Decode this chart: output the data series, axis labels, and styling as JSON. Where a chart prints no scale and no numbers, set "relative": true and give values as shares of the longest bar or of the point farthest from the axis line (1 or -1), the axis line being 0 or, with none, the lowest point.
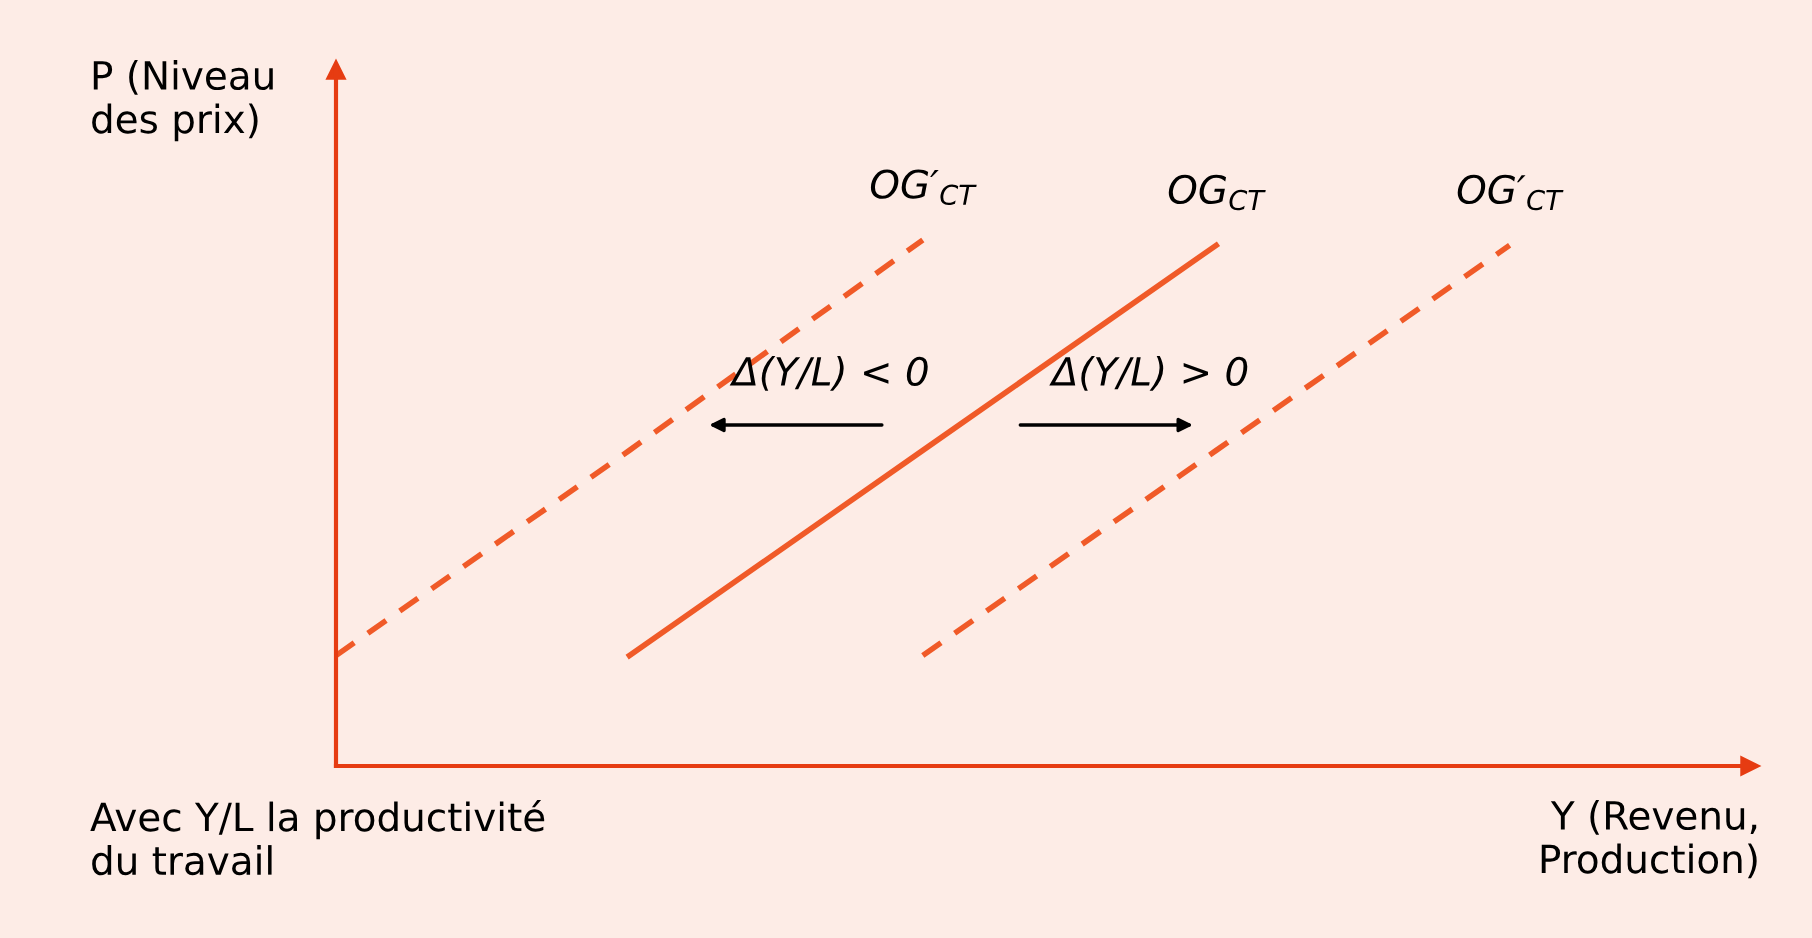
{
  "chart_data": {
    "type": "line",
    "relative": true,
    "ylabel": "P (Niveau\ndes prix)",
    "xlabel": "Y (Revenu,\nProduction)",
    "categories": [
      null,
      null,
      null,
      null,
      null
    ],
    "series": [
      {
        "name": "OG′$_{CT}$",
        "color": "#f05a28",
        "line_style": "dashed",
        "values": [
          0.21,
          0.6,
          1.0,
          null,
          null
        ]
      },
      {
        "name": "OG$_{CT}$",
        "color": "#f05a28",
        "line_style": "solid",
        "values": [
          null,
          0.21,
          0.6,
          0.99,
          null
        ]
      },
      {
        "name": "OG′$_{CT}$",
        "color": "#f05a28",
        "line_style": "dashed",
        "values": [
          null,
          null,
          0.21,
          0.6,
          0.99
        ]
      }
    ],
    "annotations": [
      "Δ(Y/L) < 0",
      "Δ(Y/L) > 0",
      "Avec Y/L la productivité\ndu travail"
    ],
    "legend": false,
    "marker": "none"
  }
}
